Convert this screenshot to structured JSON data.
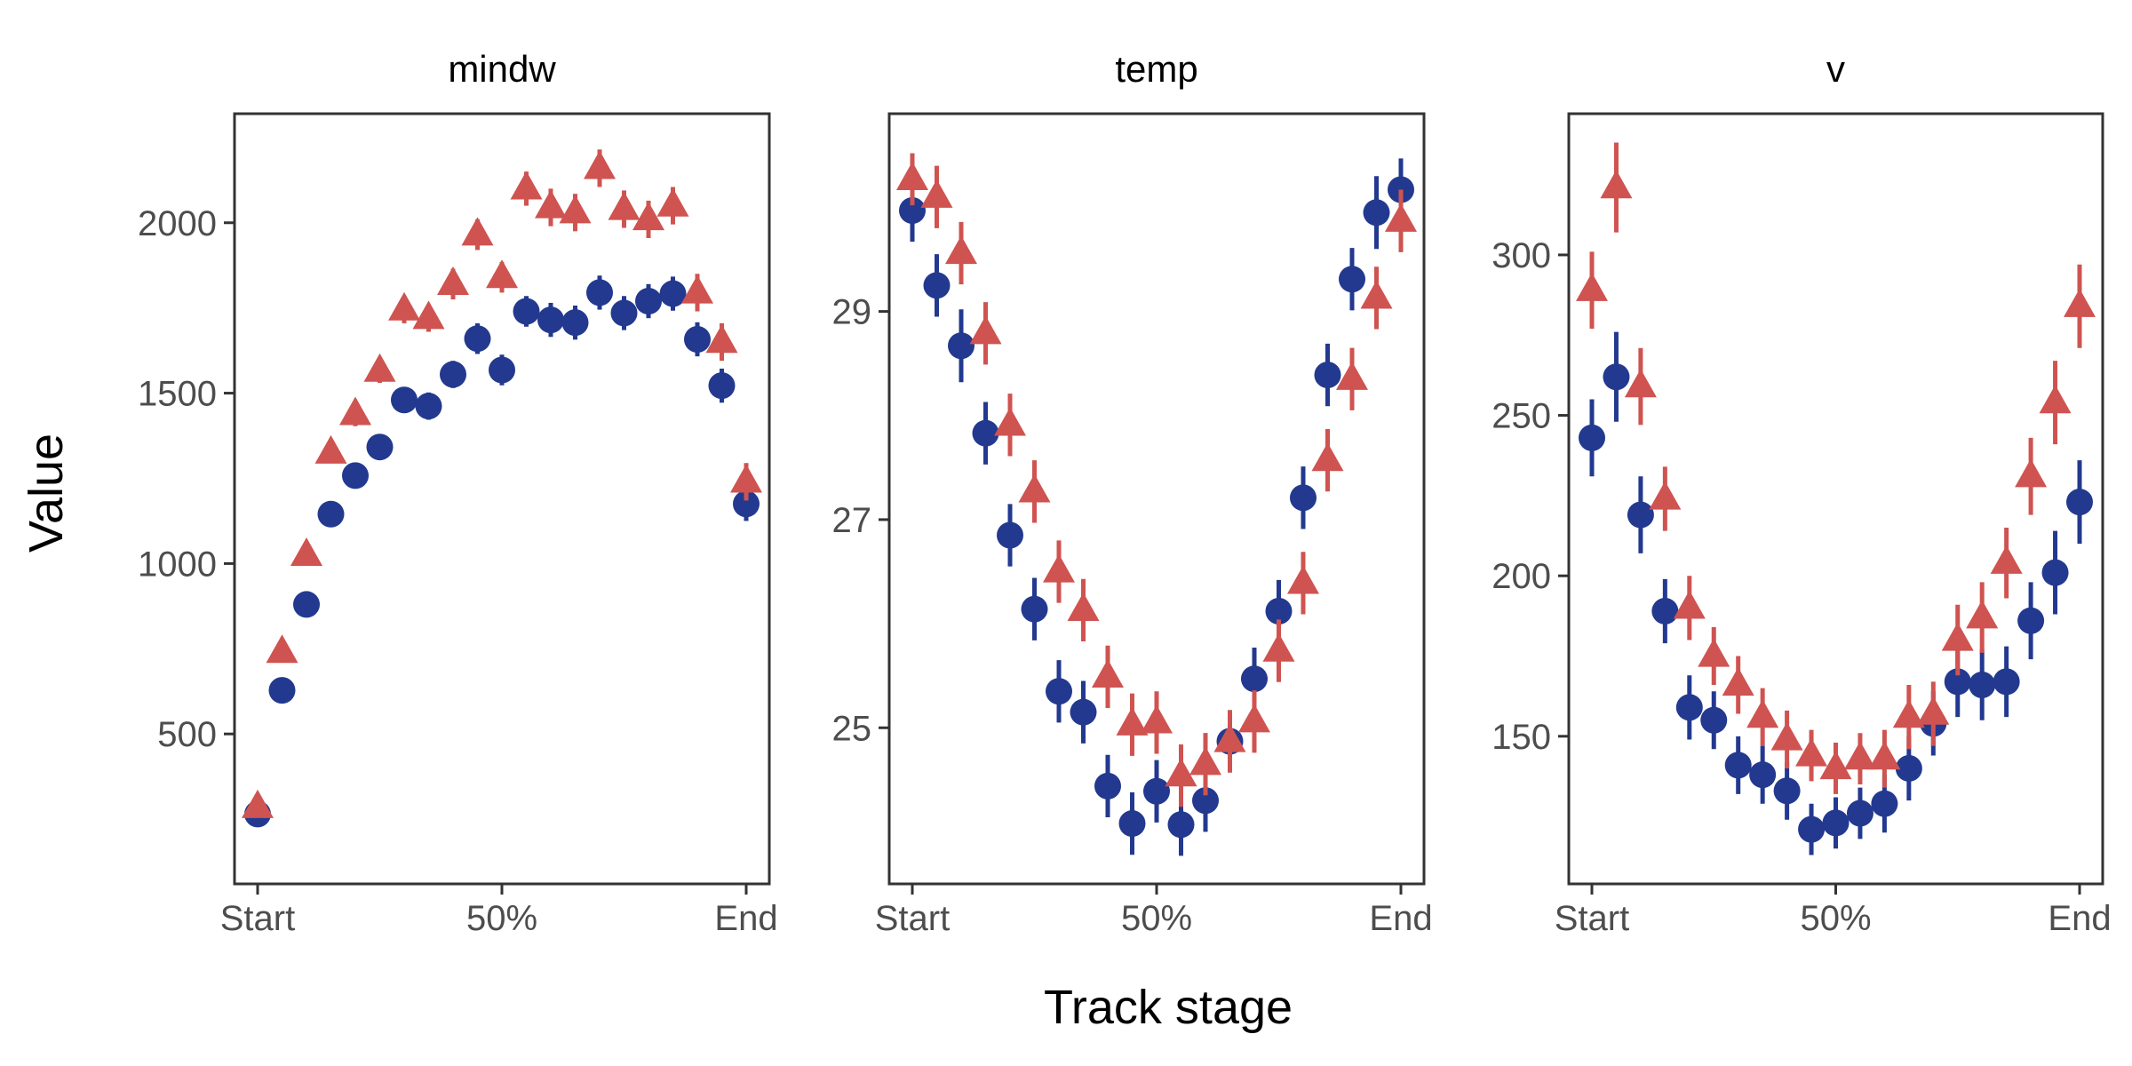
{
  "chart_data": {
    "type": "scatter",
    "xlabel": "Track stage",
    "ylabel": "Value",
    "x_ticks": [
      "Start",
      "50%",
      "End"
    ],
    "grid": false,
    "legend": "none",
    "colors": {
      "series_a": "#22398f",
      "series_b": "#cf5350"
    },
    "panels": [
      {
        "title": "mindw",
        "ylim": [
          60,
          2320
        ],
        "y_ticks": [
          "500",
          "1000",
          "1500",
          "2000"
        ],
        "series": [
          {
            "marker": "circle",
            "color": "#22398f",
            "x": [
              0,
              5,
              10,
              15,
              20,
              25,
              30,
              35,
              40,
              45,
              50,
              55,
              60,
              65,
              70,
              75,
              80,
              85,
              90,
              95,
              100
            ],
            "y": [
              265,
              628,
              880,
              1145,
              1258,
              1342,
              1480,
              1462,
              1555,
              1660,
              1568,
              1740,
              1715,
              1707,
              1795,
              1735,
              1770,
              1792,
              1658,
              1522,
              1175
            ],
            "err": [
              20,
              20,
              25,
              28,
              30,
              35,
              35,
              40,
              40,
              45,
              45,
              45,
              50,
              50,
              50,
              50,
              50,
              50,
              50,
              50,
              50
            ]
          },
          {
            "marker": "triangle",
            "color": "#cf5350",
            "x": [
              0,
              5,
              10,
              15,
              20,
              25,
              30,
              35,
              40,
              45,
              50,
              55,
              60,
              65,
              70,
              75,
              80,
              85,
              90,
              95,
              100
            ],
            "y": [
              285,
              740,
              1025,
              1325,
              1438,
              1565,
              1745,
              1720,
              1820,
              1965,
              1840,
              2100,
              2045,
              2030,
              2160,
              2040,
              2010,
              2050,
              1795,
              1650,
              1240
            ],
            "err": [
              20,
              25,
              30,
              30,
              35,
              35,
              40,
              40,
              45,
              45,
              45,
              50,
              55,
              55,
              55,
              55,
              55,
              55,
              55,
              55,
              55
            ]
          }
        ]
      },
      {
        "title": "temp",
        "ylim": [
          23.5,
          30.9
        ],
        "y_ticks": [
          "25",
          "27",
          "29"
        ],
        "series": [
          {
            "marker": "circle",
            "color": "#22398f",
            "x": [
              0,
              5,
              10,
              15,
              20,
              25,
              30,
              35,
              40,
              45,
              50,
              55,
              60,
              65,
              70,
              75,
              80,
              85,
              90,
              95,
              100
            ],
            "y": [
              29.97,
              29.25,
              28.67,
              27.83,
              26.85,
              26.14,
              25.35,
              25.15,
              24.44,
              24.08,
              24.39,
              24.07,
              24.3,
              24.87,
              25.47,
              26.12,
              27.21,
              28.39,
              29.31,
              29.95,
              30.17
            ],
            "err": [
              0.3,
              0.3,
              0.35,
              0.3,
              0.3,
              0.3,
              0.3,
              0.3,
              0.3,
              0.3,
              0.3,
              0.3,
              0.3,
              0.3,
              0.3,
              0.3,
              0.3,
              0.3,
              0.3,
              0.35,
              0.3
            ]
          },
          {
            "marker": "triangle",
            "color": "#cf5350",
            "x": [
              0,
              5,
              10,
              15,
              20,
              25,
              30,
              35,
              40,
              45,
              50,
              55,
              60,
              65,
              70,
              75,
              80,
              85,
              90,
              95,
              100
            ],
            "y": [
              30.27,
              30.1,
              29.56,
              28.79,
              27.91,
              27.27,
              26.5,
              26.13,
              25.49,
              25.03,
              25.05,
              24.54,
              24.65,
              24.87,
              25.06,
              25.74,
              26.39,
              27.57,
              28.35,
              29.13,
              29.87
            ],
            "err": [
              0.25,
              0.3,
              0.3,
              0.3,
              0.3,
              0.3,
              0.3,
              0.3,
              0.3,
              0.3,
              0.3,
              0.3,
              0.3,
              0.3,
              0.3,
              0.3,
              0.3,
              0.3,
              0.3,
              0.3,
              0.3
            ]
          }
        ]
      },
      {
        "title": "v",
        "ylim": [
          104,
          344
        ],
        "y_ticks": [
          "150",
          "200",
          "250",
          "300"
        ],
        "series": [
          {
            "marker": "circle",
            "color": "#22398f",
            "x": [
              0,
              5,
              10,
              15,
              20,
              25,
              30,
              35,
              40,
              45,
              50,
              55,
              60,
              65,
              70,
              75,
              80,
              85,
              90,
              95,
              100
            ],
            "y": [
              243,
              262,
              219,
              189,
              159,
              155,
              141,
              138,
              133,
              121,
              123,
              126,
              129,
              140,
              154,
              167,
              166,
              167,
              186,
              201,
              223
            ],
            "err": [
              12,
              14,
              12,
              10,
              10,
              9,
              9,
              9,
              9,
              8,
              8,
              8,
              9,
              10,
              10,
              11,
              11,
              11,
              12,
              13,
              13
            ]
          },
          {
            "marker": "triangle",
            "color": "#cf5350",
            "x": [
              0,
              5,
              10,
              15,
              20,
              25,
              30,
              35,
              40,
              45,
              50,
              55,
              60,
              65,
              70,
              75,
              80,
              85,
              90,
              95,
              100
            ],
            "y": [
              289,
              321,
              259,
              224,
              190,
              175,
              166,
              156,
              149,
              144,
              140,
              143,
              143,
              156,
              157,
              180,
              187,
              204,
              231,
              254,
              284
            ],
            "err": [
              12,
              14,
              12,
              10,
              10,
              9,
              9,
              9,
              9,
              8,
              8,
              8,
              9,
              10,
              10,
              11,
              11,
              11,
              12,
              13,
              13
            ]
          }
        ]
      }
    ]
  }
}
